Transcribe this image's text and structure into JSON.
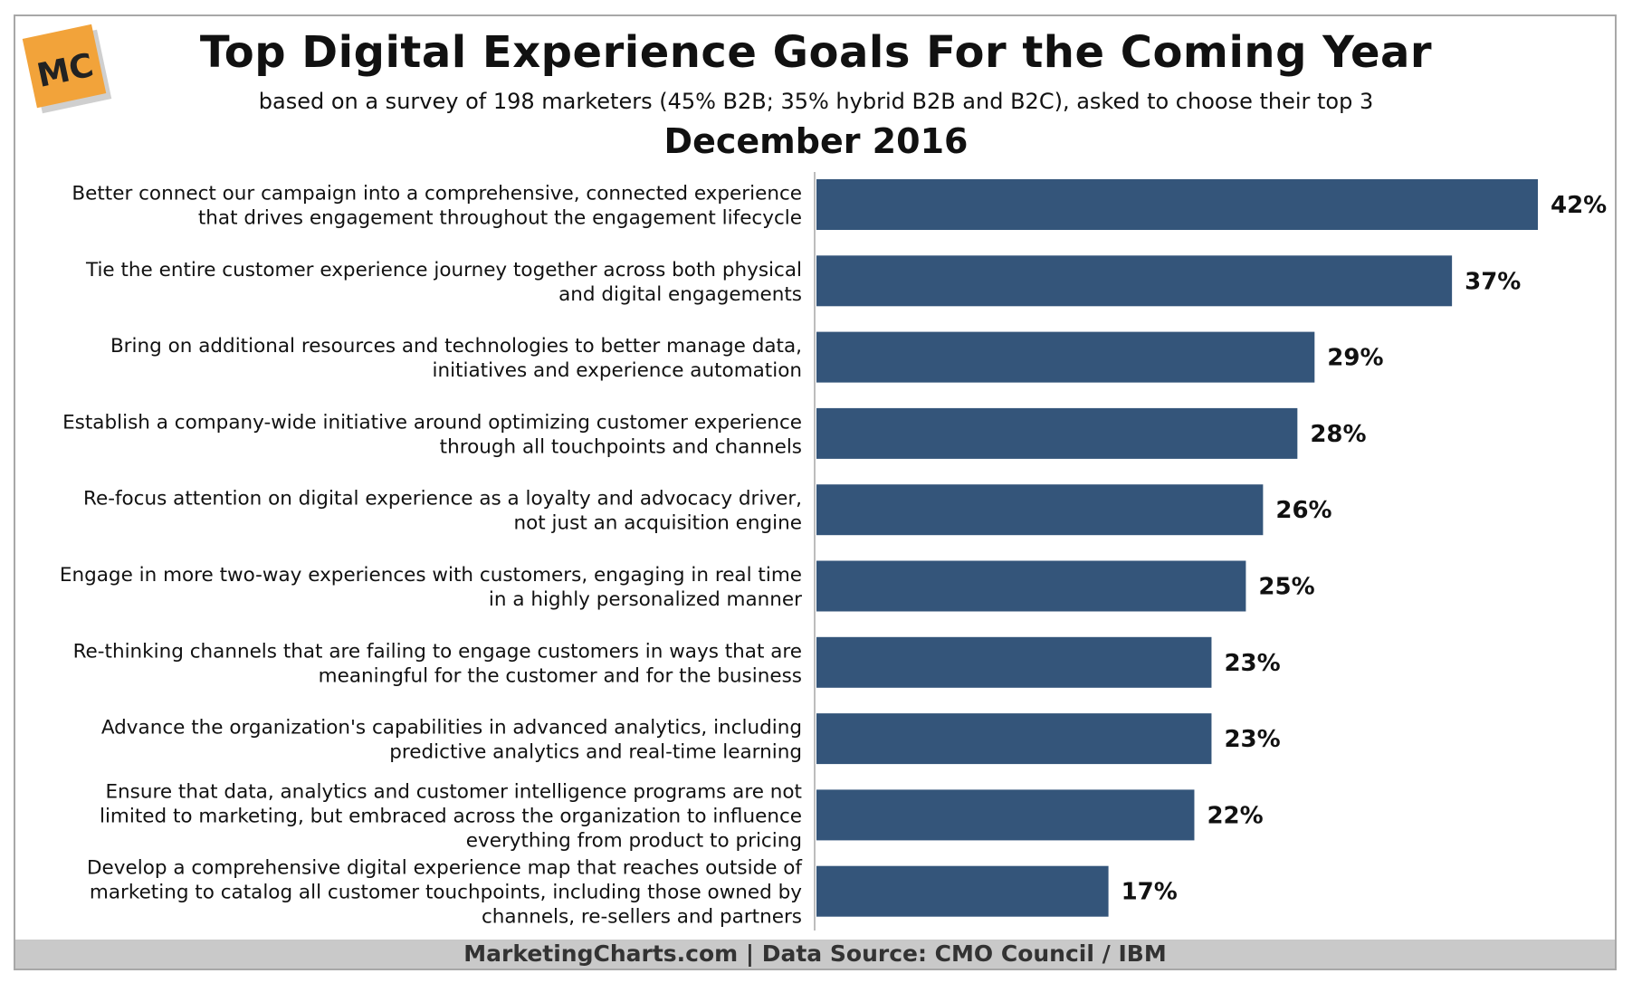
{
  "logo": {
    "text": "MC",
    "color": "#f2a33a"
  },
  "header": {
    "title": "Top Digital Experience Goals For the Coming Year",
    "subtitle": "based on a survey of 198 marketers (45% B2B; 35% hybrid B2B and B2C), asked to choose their top 3",
    "period": "December 2016"
  },
  "chart_data": {
    "type": "bar",
    "orientation": "horizontal",
    "bar_color": "#34557a",
    "unit": "%",
    "xlim": [
      0,
      42
    ],
    "grid": false,
    "categories": [
      [
        "Better connect our campaign into a comprehensive, connected experience",
        "that drives engagement throughout the engagement lifecycle"
      ],
      [
        "Tie the entire customer experience journey together across both physical",
        "and digital engagements"
      ],
      [
        "Bring on additional resources and technologies to better manage data,",
        "initiatives and experience automation"
      ],
      [
        "Establish a company-wide initiative around optimizing customer experience",
        "through all touchpoints and channels"
      ],
      [
        "Re-focus attention on digital experience as a loyalty and advocacy driver,",
        "not just an acquisition engine"
      ],
      [
        "Engage in more two-way experiences with customers, engaging in real time",
        "in a highly personalized manner"
      ],
      [
        "Re-thinking channels that are failing to engage customers in ways that are",
        "meaningful for the customer and for the business"
      ],
      [
        "Advance the organization's capabilities in advanced analytics, including",
        "predictive analytics and real-time learning"
      ],
      [
        "Ensure that data, analytics and customer intelligence programs are not",
        "limited to marketing, but embraced across the organization to influence",
        "everything from product to pricing"
      ],
      [
        "Develop a comprehensive digital experience map that reaches outside of",
        "marketing to catalog all customer touchpoints, including those owned by",
        "channels, re-sellers and partners"
      ]
    ],
    "values": [
      42,
      37,
      29,
      28,
      26,
      25,
      23,
      23,
      22,
      17
    ],
    "value_labels": [
      "42%",
      "37%",
      "29%",
      "28%",
      "26%",
      "25%",
      "23%",
      "23%",
      "22%",
      "17%"
    ]
  },
  "footer": {
    "text": "MarketingCharts.com | Data Source: CMO Council / IBM"
  }
}
